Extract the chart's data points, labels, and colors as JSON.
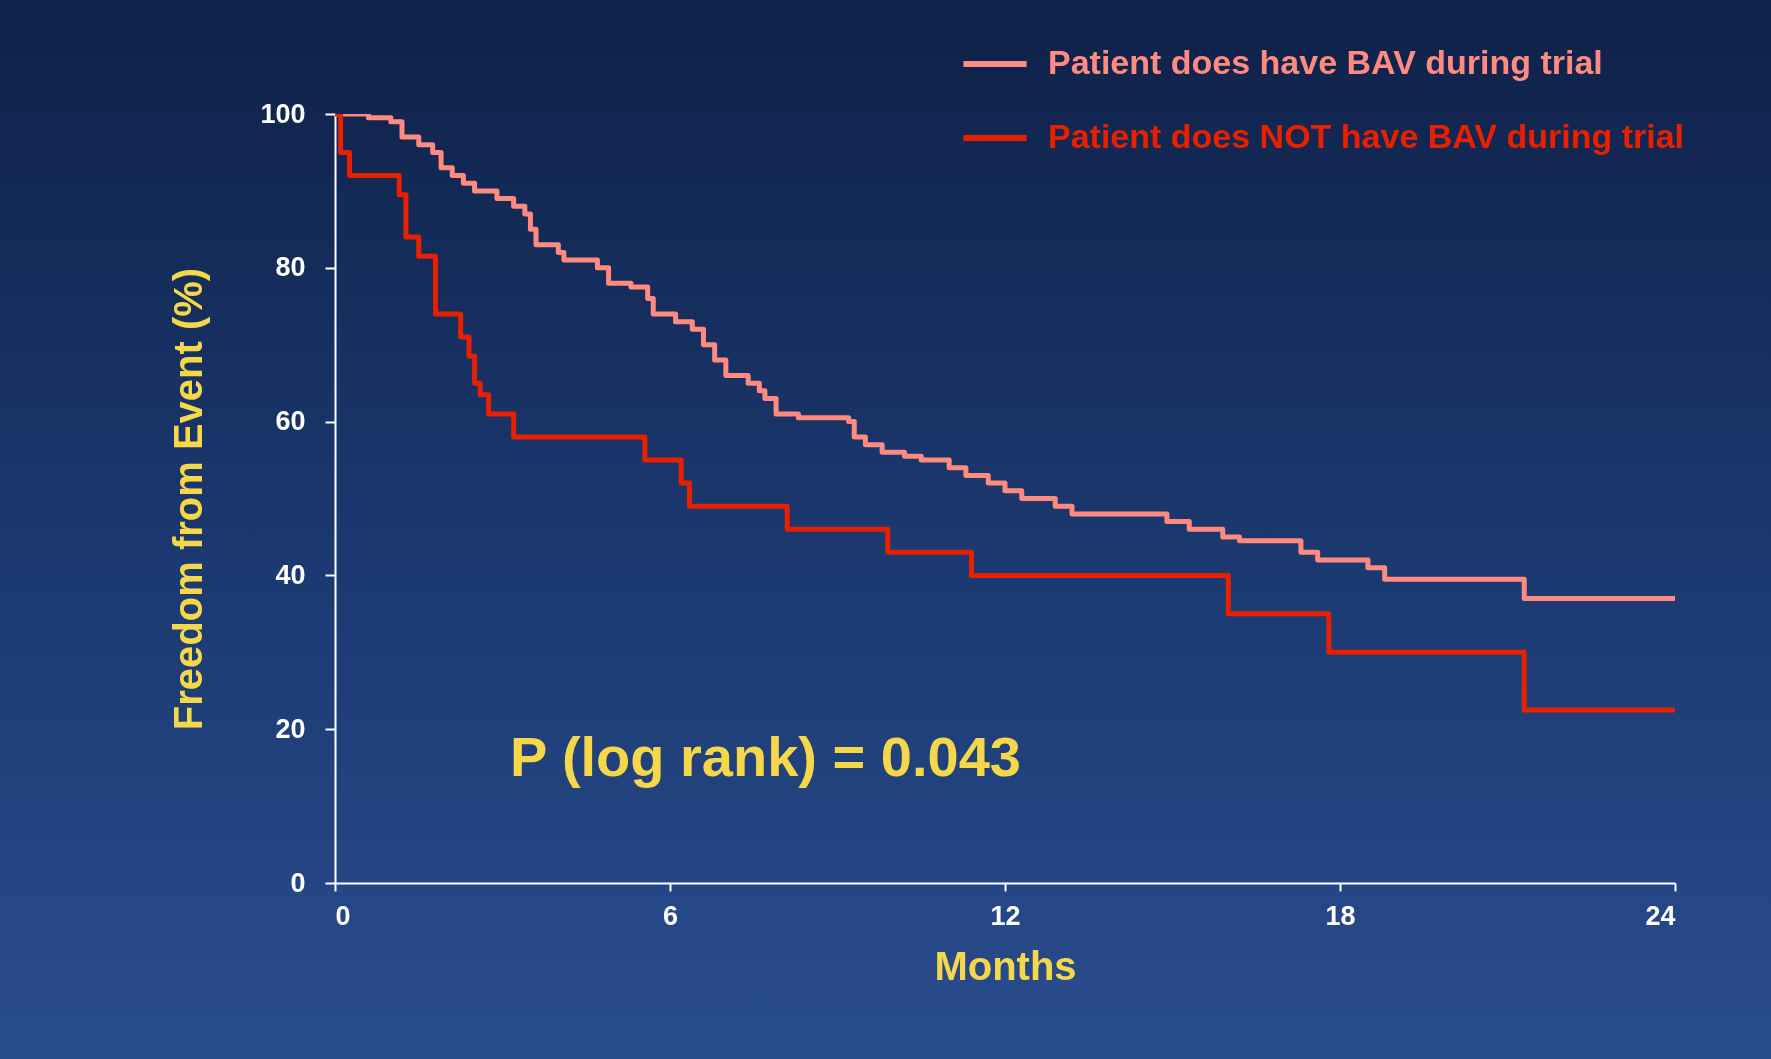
{
  "chart_data": {
    "type": "step",
    "xlabel": "Months",
    "ylabel": "Freedom from Event (%)",
    "xlim": [
      0,
      24
    ],
    "xticks": [
      0,
      6,
      12,
      18,
      24
    ],
    "ylim": [
      0,
      100
    ],
    "yticks": [
      0,
      20,
      40,
      60,
      80,
      100
    ],
    "grid": false,
    "legend": "top right",
    "annotations": [
      "P (log rank) = 0.043"
    ],
    "series": [
      {
        "name": "Patient does have BAV during trial",
        "color": "#ff8a80",
        "x": [
          0,
          0.6,
          1.0,
          1.2,
          1.5,
          1.75,
          1.9,
          2.1,
          2.3,
          2.5,
          2.9,
          3.2,
          3.4,
          3.5,
          3.6,
          4.0,
          4.1,
          4.7,
          4.9,
          5.3,
          5.6,
          5.7,
          6.1,
          6.4,
          6.6,
          6.8,
          7.0,
          7.4,
          7.6,
          7.7,
          7.9,
          8.3,
          9.2,
          9.3,
          9.5,
          9.8,
          10.2,
          10.5,
          11.0,
          11.3,
          11.7,
          12.0,
          12.3,
          12.9,
          13.2,
          14.9,
          15.3,
          15.9,
          16.2,
          17.3,
          17.6,
          18.5,
          18.8,
          21.3,
          24
        ],
        "values": [
          100,
          99.5,
          99,
          97,
          96,
          95,
          93,
          92,
          91,
          90,
          89,
          88,
          87,
          85,
          83,
          82,
          81,
          80,
          78,
          77.5,
          76,
          74,
          73,
          72,
          70,
          68,
          66,
          65,
          64,
          63,
          61,
          60.5,
          60,
          58,
          57,
          56,
          55.5,
          55,
          54,
          53,
          52,
          51,
          50,
          49,
          48,
          47,
          46,
          45,
          44.5,
          43,
          42,
          41,
          39.5,
          37,
          37
        ]
      },
      {
        "name": "Patient does NOT have BAV during trial",
        "color": "#e82000",
        "x": [
          0,
          0.1,
          0.26,
          1.15,
          1.27,
          1.5,
          1.8,
          2.25,
          2.4,
          2.5,
          2.6,
          2.75,
          3.2,
          5.55,
          6.2,
          6.35,
          8.1,
          9.9,
          11.4,
          16.0,
          17.8,
          21.3,
          24
        ],
        "values": [
          100,
          95,
          92,
          89.5,
          84,
          81.5,
          74,
          71,
          68.5,
          65,
          63.5,
          61,
          58,
          55,
          52,
          49,
          46,
          43,
          40,
          35,
          30,
          22.5,
          22.5
        ]
      }
    ]
  }
}
